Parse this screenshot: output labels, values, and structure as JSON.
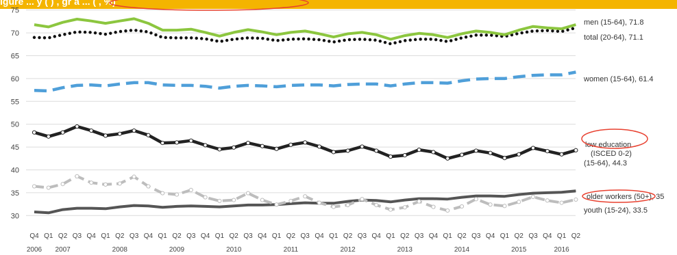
{
  "header": {
    "banner_text": "igure    ...   y    (   )    ,  gr   a   ...     (   ,  %)"
  },
  "chart_data": {
    "type": "line",
    "title": "",
    "xlabel": "",
    "ylabel": "",
    "ylim": [
      27.5,
      76
    ],
    "yticks": [
      30,
      35,
      40,
      45,
      50,
      55,
      60,
      65,
      70,
      75
    ],
    "grid": true,
    "legend": "inline labels at right end of each line",
    "quarters": [
      "Q4",
      "Q1",
      "Q2",
      "Q3",
      "Q4",
      "Q1",
      "Q2",
      "Q3",
      "Q4",
      "Q1",
      "Q2",
      "Q3",
      "Q4",
      "Q1",
      "Q2",
      "Q3",
      "Q4",
      "Q1",
      "Q2",
      "Q3",
      "Q4",
      "Q1",
      "Q2",
      "Q3",
      "Q4",
      "Q1",
      "Q2",
      "Q3",
      "Q4",
      "Q1",
      "Q2",
      "Q3",
      "Q4",
      "Q1",
      "Q2",
      "Q3",
      "Q4",
      "Q1",
      "Q2"
    ],
    "year_labels": [
      {
        "year": "2006",
        "index": 0
      },
      {
        "year": "2007",
        "index": 2
      },
      {
        "year": "2008",
        "index": 6
      },
      {
        "year": "2009",
        "index": 10
      },
      {
        "year": "2010",
        "index": 14
      },
      {
        "year": "2011",
        "index": 18
      },
      {
        "year": "2012",
        "index": 22
      },
      {
        "year": "2013",
        "index": 26
      },
      {
        "year": "2014",
        "index": 30
      },
      {
        "year": "2015",
        "index": 34
      },
      {
        "year": "2016",
        "index": 37
      }
    ],
    "series": [
      {
        "name": "men (15-64), 71.8",
        "color": "#8cc63f",
        "style": "solid",
        "values": [
          71.8,
          71.3,
          72.3,
          73.0,
          72.6,
          72.1,
          72.6,
          73.1,
          72.1,
          70.6,
          70.6,
          70.8,
          70.1,
          69.3,
          70.1,
          70.7,
          70.2,
          69.6,
          70.1,
          70.4,
          69.8,
          69.1,
          69.8,
          70.1,
          69.6,
          68.6,
          69.4,
          69.9,
          69.6,
          69.0,
          69.8,
          70.4,
          70.1,
          69.6,
          70.6,
          71.4,
          71.1,
          70.9,
          71.8
        ]
      },
      {
        "name": "total (20-64), 71.1",
        "color": "#111111",
        "style": "dotted",
        "values": [
          69.0,
          68.9,
          69.6,
          70.2,
          70.1,
          69.7,
          70.3,
          70.6,
          70.2,
          69.0,
          68.9,
          68.9,
          68.7,
          68.1,
          68.6,
          68.9,
          68.8,
          68.3,
          68.6,
          68.7,
          68.5,
          68.0,
          68.5,
          68.6,
          68.4,
          67.6,
          68.3,
          68.6,
          68.6,
          68.1,
          68.9,
          69.5,
          69.5,
          69.2,
          69.9,
          70.4,
          70.5,
          70.3,
          71.1
        ]
      },
      {
        "name": "women (15-64), 61.4",
        "color": "#4f9fd9",
        "style": "dashed",
        "values": [
          57.4,
          57.3,
          58.0,
          58.5,
          58.6,
          58.4,
          58.8,
          59.1,
          59.1,
          58.6,
          58.5,
          58.5,
          58.3,
          57.9,
          58.3,
          58.5,
          58.4,
          58.2,
          58.5,
          58.6,
          58.6,
          58.4,
          58.7,
          58.8,
          58.8,
          58.4,
          58.8,
          59.1,
          59.1,
          59.0,
          59.5,
          59.9,
          60.0,
          60.0,
          60.4,
          60.7,
          60.8,
          60.8,
          61.4
        ]
      },
      {
        "name": "(15-64), 44.3",
        "color": "#222222",
        "style": "solid-markers",
        "values": [
          48.2,
          47.3,
          48.2,
          49.5,
          48.6,
          47.5,
          47.9,
          48.6,
          47.6,
          45.9,
          46.0,
          46.4,
          45.4,
          44.5,
          44.9,
          45.9,
          45.2,
          44.6,
          45.5,
          46.0,
          45.1,
          43.9,
          44.2,
          45.1,
          44.2,
          42.9,
          43.2,
          44.4,
          43.9,
          42.5,
          43.3,
          44.2,
          43.7,
          42.6,
          43.4,
          44.8,
          44.1,
          43.4,
          44.3
        ]
      },
      {
        "name": "older workers (50+), 35",
        "color": "#555555",
        "style": "solid",
        "values": [
          30.8,
          30.6,
          31.3,
          31.6,
          31.6,
          31.5,
          31.9,
          32.2,
          32.1,
          31.8,
          32.0,
          32.1,
          32.0,
          31.9,
          32.1,
          32.3,
          32.3,
          32.4,
          32.6,
          32.8,
          32.7,
          32.7,
          33.1,
          33.4,
          33.3,
          33.0,
          33.4,
          33.7,
          33.7,
          33.6,
          34.0,
          34.3,
          34.3,
          34.2,
          34.6,
          34.9,
          35.0,
          35.1,
          35.4
        ]
      },
      {
        "name": "youth (15-24), 33.5",
        "color": "#bdbdbd",
        "style": "dashed-markers",
        "values": [
          36.4,
          36.1,
          36.9,
          38.6,
          37.2,
          36.8,
          37.0,
          38.5,
          36.4,
          34.9,
          34.6,
          35.6,
          34.0,
          33.2,
          33.4,
          34.9,
          33.4,
          32.4,
          33.2,
          34.2,
          32.8,
          31.9,
          32.3,
          33.6,
          32.3,
          31.3,
          31.8,
          33.1,
          31.9,
          31.1,
          32.0,
          33.6,
          32.4,
          32.1,
          33.0,
          34.1,
          33.3,
          32.8,
          33.5
        ]
      }
    ],
    "labels": {
      "men": "men (15-64), 71.8",
      "total": "total (20-64), 71.1",
      "women": "women (15-64), 61.4",
      "low_edu_line1": "low education",
      "low_edu_line2": "(ISCED 0-2)",
      "low_edu_line3": "(15-64), 44.3",
      "older": "older workers (50+), 35",
      "youth": "youth (15-24), 33.5"
    },
    "annotations": {
      "highlight_color": "#e8402f"
    }
  }
}
